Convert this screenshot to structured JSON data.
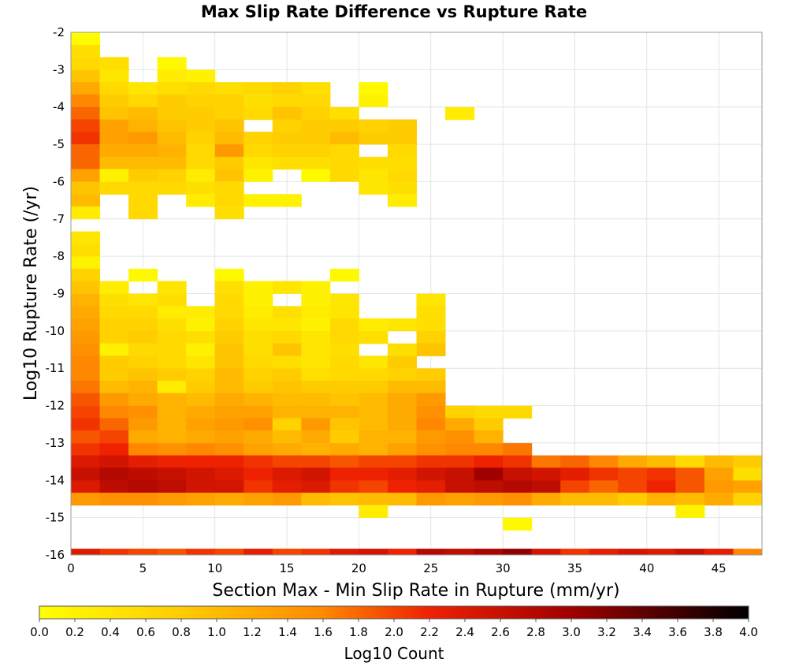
{
  "chart_data": {
    "type": "heatmap",
    "title": "Max Slip Rate Difference vs Rupture Rate",
    "xlabel": "Section Max - Min Slip Rate in Rupture (mm/yr)",
    "ylabel": "Log10 Rupture Rate (/yr)",
    "xlim": [
      0,
      48
    ],
    "ylim": [
      -16,
      -2
    ],
    "x_ticks": [
      "0",
      "5",
      "10",
      "15",
      "20",
      "25",
      "30",
      "35",
      "40",
      "45"
    ],
    "y_ticks": [
      "-2",
      "-3",
      "-4",
      "-5",
      "-6",
      "-7",
      "-8",
      "-9",
      "-10",
      "-11",
      "-12",
      "-13",
      "-14",
      "-15",
      "-16"
    ],
    "x_bin_width": 2,
    "y_bin_width": 0.333,
    "colorbar": {
      "label": "Log10 Count",
      "min": 0,
      "max": 4,
      "ticks": [
        "0.0",
        "0.2",
        "0.4",
        "0.6",
        "0.8",
        "1.0",
        "1.2",
        "1.4",
        "1.6",
        "1.8",
        "2.0",
        "2.2",
        "2.4",
        "2.6",
        "2.8",
        "3.0",
        "3.2",
        "3.4",
        "3.6",
        "3.8",
        "4.0"
      ]
    },
    "grid": true,
    "rows": [
      {
        "y": -2.17,
        "values": [
          0.05
        ]
      },
      {
        "y": -2.5,
        "values": [
          0.5
        ]
      },
      {
        "y": -2.83,
        "values": [
          0.6,
          0.5,
          null,
          0.1
        ]
      },
      {
        "y": -3.17,
        "values": [
          0.9,
          0.4,
          null,
          0.3,
          0.2
        ]
      },
      {
        "y": -3.5,
        "values": [
          1.2,
          0.6,
          0.4,
          0.5,
          0.6,
          0.5,
          0.6,
          0.7,
          0.5,
          null,
          0.1
        ]
      },
      {
        "y": -3.83,
        "values": [
          1.6,
          0.8,
          0.6,
          0.8,
          0.7,
          0.7,
          0.5,
          0.6,
          0.6,
          null,
          0.2
        ]
      },
      {
        "y": -4.17,
        "values": [
          1.8,
          0.9,
          1.0,
          0.8,
          0.8,
          0.7,
          0.6,
          0.9,
          0.7,
          0.5,
          null,
          null,
          null,
          0.3
        ]
      },
      {
        "y": -4.5,
        "values": [
          2.0,
          1.3,
          1.1,
          0.9,
          0.8,
          0.9,
          null,
          0.7,
          0.8,
          0.8,
          0.7,
          0.8,
          null,
          null,
          null,
          null,
          null,
          null,
          null,
          null,
          null,
          null,
          null,
          null
        ]
      },
      {
        "y": -4.83,
        "values": [
          2.1,
          1.3,
          1.4,
          1.0,
          0.7,
          1.0,
          0.7,
          0.8,
          0.8,
          1.0,
          0.8,
          0.8
        ]
      },
      {
        "y": -5.17,
        "values": [
          1.8,
          1.2,
          1.2,
          1.1,
          0.6,
          1.4,
          0.6,
          0.7,
          0.7,
          0.6,
          null,
          0.6
        ]
      },
      {
        "y": -5.5,
        "values": [
          1.8,
          1.0,
          1.0,
          1.0,
          0.6,
          0.8,
          0.4,
          0.5,
          0.5,
          0.6,
          0.5,
          0.5
        ]
      },
      {
        "y": -5.83,
        "values": [
          1.3,
          0.2,
          0.8,
          0.7,
          0.3,
          0.9,
          0.2,
          null,
          0.1,
          0.6,
          0.4,
          0.6
        ]
      },
      {
        "y": -6.17,
        "values": [
          0.9,
          0.6,
          0.6,
          0.6,
          0.5,
          0.6,
          null,
          null,
          null,
          null,
          0.4,
          0.5
        ]
      },
      {
        "y": -6.5,
        "values": [
          1.0,
          null,
          0.6,
          null,
          0.3,
          0.6,
          0.2,
          0.2,
          null,
          null,
          null,
          0.3
        ]
      },
      {
        "y": -6.83,
        "values": [
          0.3,
          null,
          0.6,
          null,
          null,
          0.5
        ]
      },
      {
        "y": -7.5,
        "values": [
          0.4
        ]
      },
      {
        "y": -7.83,
        "values": [
          0.5
        ]
      },
      {
        "y": -8.17,
        "values": [
          0.2
        ]
      },
      {
        "y": -8.5,
        "values": [
          0.7,
          null,
          0.1,
          null,
          null,
          0.1,
          null,
          null,
          null,
          0.1
        ]
      },
      {
        "y": -8.83,
        "values": [
          0.9,
          0.3,
          null,
          0.4,
          null,
          0.5,
          0.2,
          0.4,
          0.2
        ]
      },
      {
        "y": -9.17,
        "values": [
          1.1,
          0.5,
          0.4,
          0.5,
          null,
          0.6,
          0.2,
          null,
          0.2,
          0.4,
          null,
          null,
          0.4
        ]
      },
      {
        "y": -9.5,
        "values": [
          1.2,
          0.6,
          0.6,
          0.3,
          0.3,
          0.6,
          0.3,
          0.5,
          0.3,
          0.4,
          null,
          null,
          0.5
        ]
      },
      {
        "y": -9.83,
        "values": [
          1.3,
          0.7,
          0.7,
          0.5,
          0.2,
          0.7,
          0.4,
          0.4,
          0.2,
          0.6,
          0.3,
          0.4,
          0.5
        ]
      },
      {
        "y": -10.17,
        "values": [
          1.4,
          0.7,
          0.8,
          0.6,
          0.5,
          0.8,
          0.5,
          0.6,
          0.4,
          0.6,
          0.5,
          null,
          0.7
        ]
      },
      {
        "y": -10.5,
        "values": [
          1.5,
          0.2,
          0.6,
          0.6,
          0.2,
          0.9,
          0.5,
          0.9,
          0.4,
          0.5,
          null,
          0.5,
          0.9
        ]
      },
      {
        "y": -10.83,
        "values": [
          1.6,
          0.8,
          0.7,
          0.6,
          0.4,
          0.9,
          0.6,
          0.5,
          0.4,
          0.6,
          0.4,
          0.8
        ]
      },
      {
        "y": -11.17,
        "values": [
          1.6,
          0.8,
          0.9,
          0.8,
          0.7,
          1.0,
          0.7,
          0.8,
          0.5,
          0.6,
          0.6,
          0.7,
          0.8,
          null,
          null,
          null,
          null,
          null,
          null,
          null,
          null,
          null,
          null,
          null
        ]
      },
      {
        "y": -11.5,
        "values": [
          1.7,
          1.0,
          1.1,
          0.3,
          0.8,
          1.0,
          0.8,
          0.9,
          0.8,
          0.8,
          0.8,
          1.0,
          1.0,
          null,
          null,
          null,
          null,
          null,
          null,
          null,
          null,
          null,
          null,
          null
        ]
      },
      {
        "y": -11.83,
        "values": [
          1.9,
          1.4,
          1.2,
          1.1,
          1.0,
          1.2,
          1.1,
          1.0,
          1.0,
          0.9,
          1.0,
          1.2,
          1.4
        ]
      },
      {
        "y": -12.17,
        "values": [
          2.0,
          1.6,
          1.5,
          1.1,
          1.2,
          1.3,
          1.3,
          1.1,
          1.1,
          1.1,
          1.0,
          1.2,
          1.5,
          0.7,
          0.6,
          0.6
        ]
      },
      {
        "y": -12.5,
        "values": [
          2.1,
          1.8,
          1.4,
          1.1,
          1.3,
          1.4,
          1.5,
          0.7,
          1.4,
          0.9,
          1.0,
          1.2,
          1.6,
          1.2,
          0.8
        ]
      },
      {
        "y": -12.83,
        "values": [
          1.9,
          2.0,
          1.2,
          1.1,
          1.2,
          1.3,
          1.2,
          1.0,
          1.2,
          0.8,
          1.1,
          1.1,
          1.4,
          1.5,
          1.1
        ]
      },
      {
        "y": -13.17,
        "values": [
          2.1,
          2.2,
          1.6,
          1.5,
          1.6,
          1.5,
          1.3,
          1.2,
          1.1,
          1.2,
          1.1,
          1.3,
          1.5,
          1.6,
          1.6,
          1.7
        ]
      },
      {
        "y": -13.5,
        "values": [
          2.4,
          2.5,
          2.3,
          2.2,
          2.2,
          2.2,
          2.1,
          2.0,
          2.0,
          1.9,
          2.0,
          2.0,
          2.1,
          2.1,
          2.2,
          2.1,
          1.7,
          1.8,
          1.6,
          1.2,
          1.0,
          0.6,
          1.0,
          0.8
        ]
      },
      {
        "y": -13.83,
        "values": [
          2.6,
          2.8,
          2.7,
          2.6,
          2.5,
          2.4,
          2.2,
          2.4,
          2.5,
          2.2,
          2.2,
          2.3,
          2.5,
          2.6,
          3.0,
          2.6,
          2.5,
          2.3,
          2.1,
          2.0,
          2.1,
          1.9,
          1.3,
          0.5
        ]
      },
      {
        "y": -14.17,
        "values": [
          2.4,
          2.7,
          2.8,
          2.7,
          2.5,
          2.5,
          2.1,
          2.3,
          2.4,
          2.1,
          2.0,
          2.2,
          2.3,
          2.6,
          2.7,
          2.8,
          2.7,
          2.0,
          1.8,
          2.0,
          2.2,
          1.9,
          1.4,
          1.3
        ]
      },
      {
        "y": -14.5,
        "values": [
          1.4,
          1.5,
          1.5,
          1.4,
          1.3,
          1.2,
          1.3,
          1.4,
          1.0,
          0.9,
          1.0,
          1.0,
          1.4,
          1.3,
          1.4,
          1.5,
          1.2,
          1.0,
          1.0,
          0.8,
          1.1,
          1.0,
          1.2,
          0.7
        ]
      },
      {
        "y": -14.83,
        "values": [
          null,
          null,
          null,
          null,
          null,
          null,
          null,
          null,
          null,
          null,
          0.3,
          null,
          null,
          null,
          null,
          null,
          null,
          null,
          null,
          null,
          null,
          0.2
        ]
      },
      {
        "y": -15.17,
        "values": [
          null,
          null,
          null,
          null,
          null,
          null,
          null,
          null,
          null,
          null,
          null,
          null,
          null,
          null,
          null,
          0.1
        ]
      },
      {
        "y": -16,
        "values": [
          2.4,
          2.1,
          2.0,
          1.9,
          2.1,
          2.0,
          2.3,
          2.0,
          2.1,
          2.4,
          2.5,
          2.2,
          2.8,
          2.7,
          2.9,
          3.1,
          2.5,
          2.1,
          2.3,
          2.5,
          2.4,
          2.6,
          2.3,
          1.6
        ]
      }
    ]
  }
}
